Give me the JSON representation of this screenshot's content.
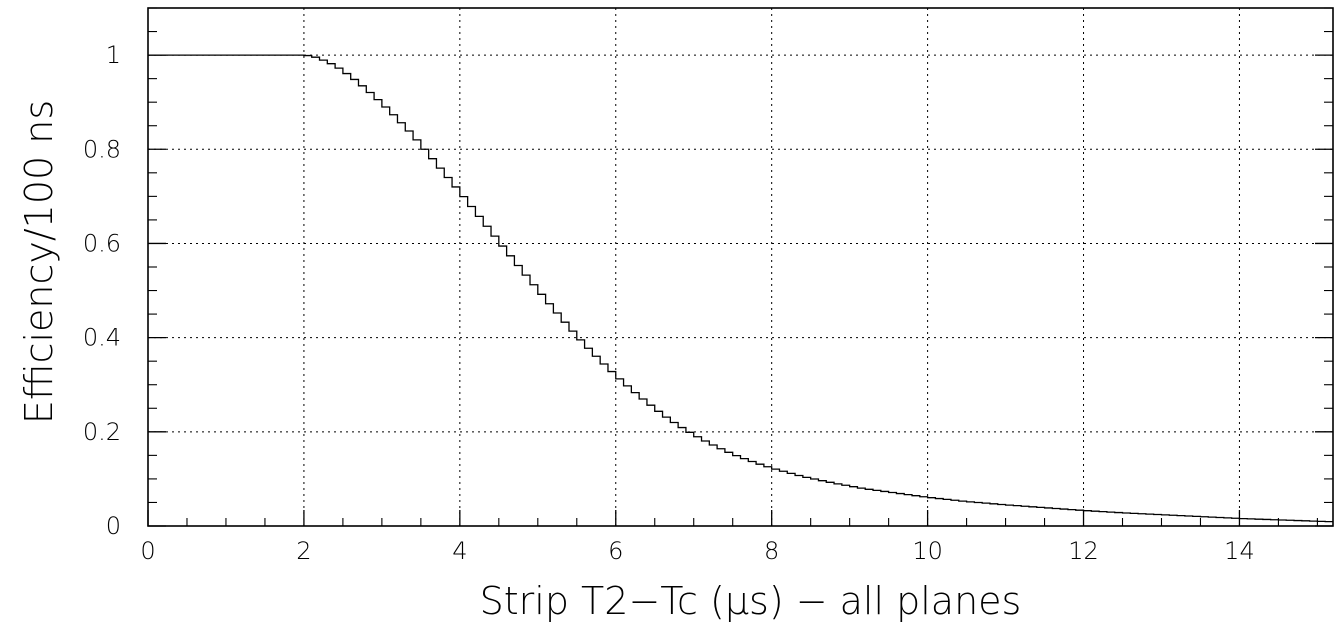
{
  "chart_data": {
    "type": "line",
    "step": true,
    "title": "",
    "xlabel": "Strip T2−Tc (μs) − all planes",
    "ylabel": "Efficiency/100 ns",
    "xlim": [
      0,
      15.2
    ],
    "ylim": [
      0,
      1.1
    ],
    "grid": true,
    "x_ticks": [
      0,
      2,
      4,
      6,
      8,
      10,
      12,
      14
    ],
    "y_ticks": [
      0,
      0.2,
      0.4,
      0.6,
      0.8,
      1
    ],
    "x_tick_labels": [
      "0",
      "2",
      "4",
      "6",
      "8",
      "10",
      "12",
      "14"
    ],
    "y_tick_labels": [
      "0",
      "0.2",
      "0.4",
      "0.6",
      "0.8",
      "1"
    ],
    "series": [
      {
        "x": [
          0,
          1,
          2,
          2.1,
          2.2,
          2.4,
          2.6,
          2.8,
          3.0,
          3.2,
          3.4,
          3.6,
          3.8,
          4.0,
          4.2,
          4.4,
          4.6,
          4.8,
          5.0,
          5.2,
          5.4,
          5.6,
          5.8,
          6.0,
          6.2,
          6.4,
          6.6,
          6.8,
          7.0,
          7.2,
          7.4,
          7.6,
          7.8,
          8.0,
          8.4,
          8.8,
          9.2,
          9.6,
          10.0,
          10.5,
          11.0,
          11.5,
          12.0,
          12.5,
          13.0,
          13.5,
          14.0,
          14.5,
          15.2
        ],
        "values": [
          1.0,
          1.0,
          1.0,
          0.998,
          0.993,
          0.978,
          0.955,
          0.928,
          0.898,
          0.865,
          0.83,
          0.79,
          0.75,
          0.71,
          0.668,
          0.626,
          0.584,
          0.543,
          0.502,
          0.462,
          0.423,
          0.386,
          0.352,
          0.32,
          0.29,
          0.263,
          0.237,
          0.214,
          0.194,
          0.176,
          0.16,
          0.146,
          0.134,
          0.123,
          0.105,
          0.091,
          0.079,
          0.07,
          0.061,
          0.052,
          0.045,
          0.039,
          0.033,
          0.028,
          0.024,
          0.02,
          0.016,
          0.013,
          0.009
        ]
      }
    ]
  }
}
